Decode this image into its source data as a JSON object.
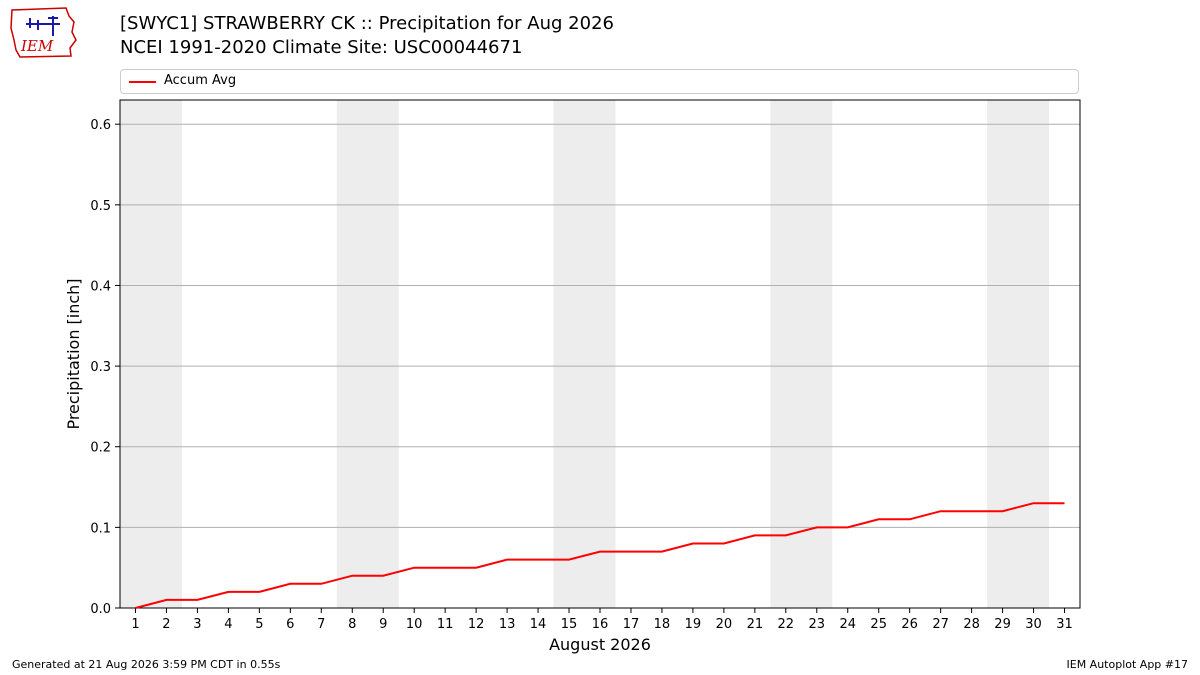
{
  "header": {
    "logo_text": "IEM",
    "title_line1": "[SWYC1] STRAWBERRY CK :: Precipitation for Aug 2026",
    "title_line2": "NCEI 1991-2020 Climate Site: USC00044671"
  },
  "footer": {
    "left": "Generated at 21 Aug 2026 3:59 PM CDT in 0.55s",
    "right": "IEM Autoplot App #17"
  },
  "colors": {
    "series": "#ff0000",
    "weekend_shade": "#ededed",
    "grid": "#b0b0b0",
    "logo_red": "#cc0000",
    "logo_blue": "#1a1aa8"
  },
  "chart_data": {
    "type": "line",
    "xlabel": "August 2026",
    "ylabel": "Precipitation [inch]",
    "ylim": [
      0,
      0.63
    ],
    "yticks": [
      0.0,
      0.1,
      0.2,
      0.3,
      0.4,
      0.5,
      0.6
    ],
    "ytick_labels": [
      "0.0",
      "0.1",
      "0.2",
      "0.3",
      "0.4",
      "0.5",
      "0.6"
    ],
    "xlim": [
      0.5,
      31.5
    ],
    "x": [
      1,
      2,
      3,
      4,
      5,
      6,
      7,
      8,
      9,
      10,
      11,
      12,
      13,
      14,
      15,
      16,
      17,
      18,
      19,
      20,
      21,
      22,
      23,
      24,
      25,
      26,
      27,
      28,
      29,
      30,
      31
    ],
    "xtick_labels": [
      "1",
      "2",
      "3",
      "4",
      "5",
      "6",
      "7",
      "8",
      "9",
      "10",
      "11",
      "12",
      "13",
      "14",
      "15",
      "16",
      "17",
      "18",
      "19",
      "20",
      "21",
      "22",
      "23",
      "24",
      "25",
      "26",
      "27",
      "28",
      "29",
      "30",
      "31"
    ],
    "grid": "horizontal",
    "legend_position": "top",
    "weekend_spans": [
      [
        1,
        2
      ],
      [
        8,
        9
      ],
      [
        15,
        16
      ],
      [
        22,
        23
      ],
      [
        29,
        30
      ]
    ],
    "series": [
      {
        "name": "Accum Avg",
        "values": [
          0.0,
          0.01,
          0.01,
          0.02,
          0.02,
          0.03,
          0.03,
          0.04,
          0.04,
          0.05,
          0.05,
          0.05,
          0.06,
          0.06,
          0.06,
          0.07,
          0.07,
          0.07,
          0.08,
          0.08,
          0.09,
          0.09,
          0.1,
          0.1,
          0.11,
          0.11,
          0.12,
          0.12,
          0.12,
          0.13,
          0.13
        ]
      }
    ]
  }
}
